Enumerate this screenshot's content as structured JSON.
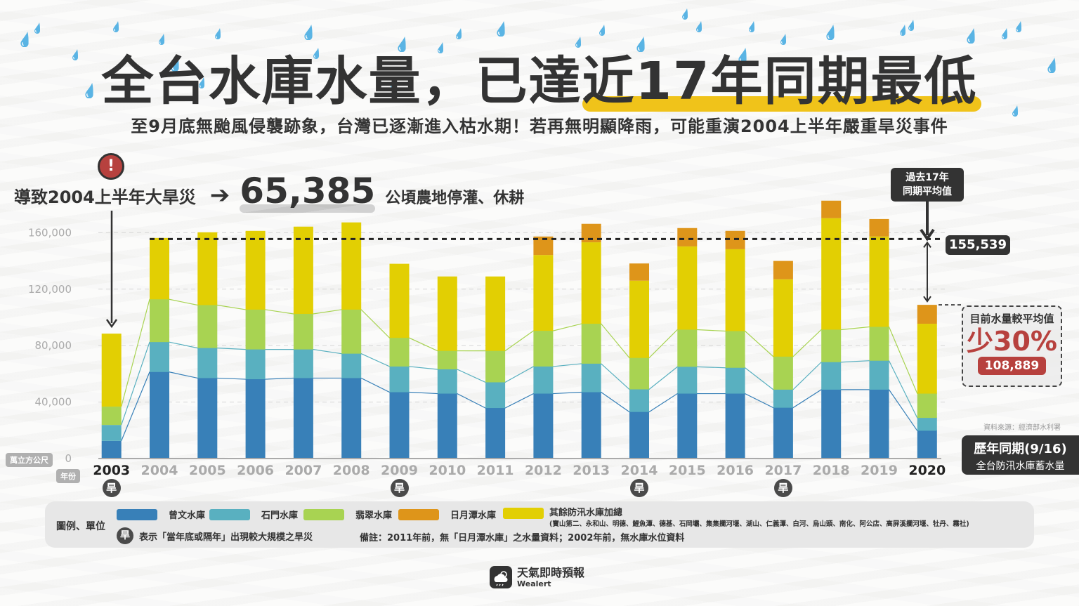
{
  "header": {
    "title_part1": "全台水庫水量，已達",
    "title_highlight": "近17年同期最低",
    "subtitle": "至9月底無颱風侵襲跡象，台灣已逐漸進入枯水期！若再無明顯降雨，可能重演2004上半年嚴重旱災事件"
  },
  "impact": {
    "alert_icon": "!",
    "label": "導致2004上半年大旱災",
    "arrow": "➔",
    "value": "65,385",
    "unit": "公頃農地停灌、休耕"
  },
  "annotations": {
    "avg_callout_line1": "過去17年",
    "avg_callout_line2": "同期平均值",
    "avg_value": "155,539",
    "diff_title": "目前水量較平均值",
    "diff_pct": "少30%",
    "diff_value": "108,889",
    "source": "資料來源：經濟部水利署",
    "period_title": "歷年同期(9/16)",
    "period_sub": "全台防汛水庫蓄水量"
  },
  "axis_badges": {
    "y_unit": "萬立方公尺",
    "x_unit": "年份",
    "drought_char": "旱"
  },
  "legend": {
    "label": "圖例、單位",
    "items": [
      {
        "name": "曾文水庫",
        "color": "#3880b8"
      },
      {
        "name": "石門水庫",
        "color": "#59b0c0"
      },
      {
        "name": "翡翠水庫",
        "color": "#a8d352"
      },
      {
        "name": "日月潭水庫",
        "color": "#de951a"
      },
      {
        "name": "其餘防汛水庫加總",
        "color": "#e2cf03"
      }
    ],
    "others_list": "(寶山第二、永和山、明德、鯉魚潭、德基、石岡壩、集集攔河堰、湖山、仁義潭、白河、烏山頭、南化、阿公店、高屏溪攔河堰、牡丹、霧社)",
    "drought_note": "表示「當年底或隔年」出現較大規模之旱災",
    "remark": "備註：2011年前，無「日月潭水庫」之水量資料；2002年前，無水庫水位資料"
  },
  "brand": {
    "name": "天氣即時預報",
    "sub": "Wealert"
  },
  "chart_data": {
    "type": "bar",
    "stacked": true,
    "title": "全台防汛水庫蓄水量 歷年同期(9/16)",
    "xlabel": "年份",
    "ylabel": "萬立方公尺",
    "ylim": [
      0,
      185000
    ],
    "yticks": [
      0,
      40000,
      80000,
      120000,
      160000
    ],
    "ytick_labels": [
      "0",
      "40,000",
      "80,000",
      "120,000",
      "160,000"
    ],
    "grid": true,
    "categories": [
      "2003",
      "2004",
      "2005",
      "2006",
      "2007",
      "2008",
      "2009",
      "2010",
      "2011",
      "2012",
      "2013",
      "2014",
      "2015",
      "2016",
      "2017",
      "2018",
      "2019",
      "2020"
    ],
    "highlighted_categories": [
      "2003",
      "2020"
    ],
    "drought_years": [
      "2003",
      "2009",
      "2014",
      "2017"
    ],
    "series": [
      {
        "name": "曾文水庫",
        "color": "#3880b8",
        "values": [
          12500,
          61300,
          57000,
          56200,
          57000,
          57000,
          47000,
          46000,
          35800,
          46000,
          47000,
          33000,
          46000,
          46000,
          36000,
          48800,
          48800,
          19700
        ]
      },
      {
        "name": "石門水庫",
        "color": "#59b0c0",
        "values": [
          11300,
          21200,
          21300,
          21100,
          20300,
          17300,
          18200,
          17200,
          18200,
          19200,
          20200,
          16000,
          19000,
          18300,
          12800,
          19500,
          20500,
          9100
        ]
      },
      {
        "name": "翡翠水庫",
        "color": "#a8d352",
        "values": [
          13000,
          30300,
          30400,
          28200,
          25200,
          31200,
          20300,
          13100,
          22300,
          25300,
          28300,
          22300,
          26300,
          26000,
          23400,
          23000,
          24000,
          17200
        ]
      },
      {
        "name": "其餘防汛水庫加總",
        "color": "#e2cf03",
        "values": [
          51700,
          43500,
          51600,
          55800,
          61800,
          61800,
          52500,
          52700,
          52700,
          53700,
          57700,
          54700,
          59000,
          58000,
          54800,
          79000,
          64000,
          49500
        ]
      },
      {
        "name": "日月潭水庫",
        "color": "#de951a",
        "values": [
          0,
          0,
          0,
          0,
          0,
          0,
          0,
          0,
          0,
          13100,
          13100,
          12200,
          13000,
          13000,
          13000,
          12400,
          12400,
          13400
        ]
      }
    ],
    "reference_line": {
      "label": "過去17年同期平均值",
      "value": 155539
    },
    "current_total": 108889,
    "current_vs_avg": "-30%"
  }
}
